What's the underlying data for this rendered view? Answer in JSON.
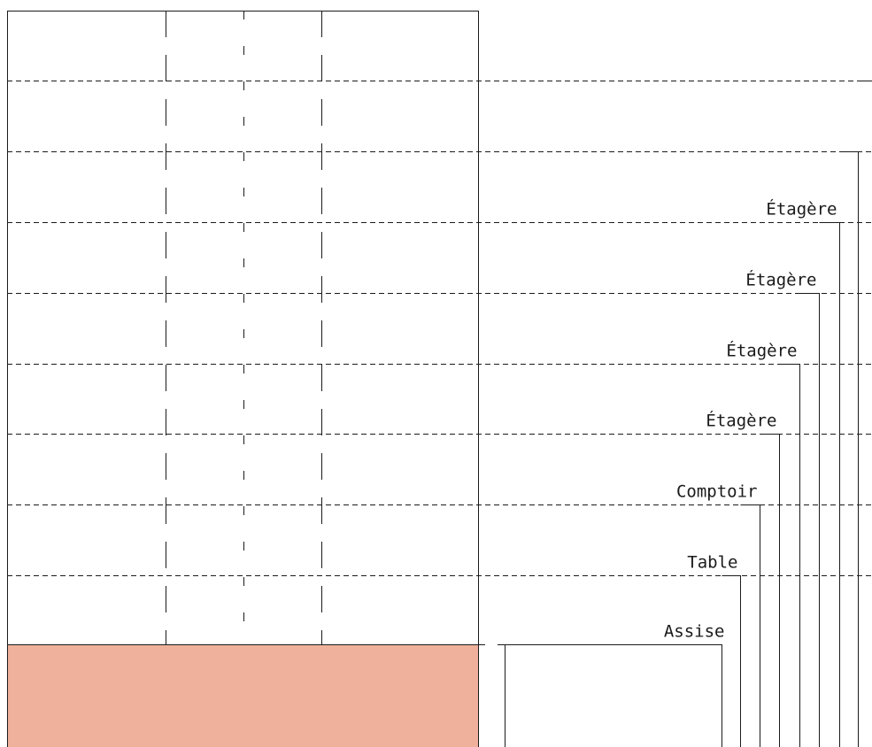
{
  "labels": [
    "Assise",
    "Table",
    "Comptoir",
    "Étagère",
    "Étagère",
    "Étagère",
    "Étagère"
  ]
}
